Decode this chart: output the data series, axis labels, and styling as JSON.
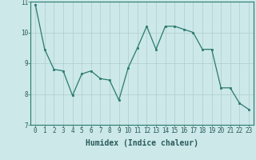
{
  "x": [
    0,
    1,
    2,
    3,
    4,
    5,
    6,
    7,
    8,
    9,
    10,
    11,
    12,
    13,
    14,
    15,
    16,
    17,
    18,
    19,
    20,
    21,
    22,
    23
  ],
  "y": [
    10.9,
    9.45,
    8.8,
    8.75,
    7.95,
    8.65,
    8.75,
    8.5,
    8.45,
    7.8,
    8.85,
    9.5,
    10.2,
    9.45,
    10.2,
    10.2,
    10.1,
    10.0,
    9.45,
    9.45,
    8.2,
    8.2,
    7.7,
    7.5
  ],
  "xlabel": "Humidex (Indice chaleur)",
  "ylim": [
    7,
    11
  ],
  "xlim": [
    -0.5,
    23.5
  ],
  "yticks": [
    7,
    8,
    9,
    10,
    11
  ],
  "xticks": [
    0,
    1,
    2,
    3,
    4,
    5,
    6,
    7,
    8,
    9,
    10,
    11,
    12,
    13,
    14,
    15,
    16,
    17,
    18,
    19,
    20,
    21,
    22,
    23
  ],
  "line_color": "#2a7a6e",
  "marker_color": "#2a7a6e",
  "bg_color": "#cce8e8",
  "grid_color": "#b0cccc",
  "axis_color": "#2a7a6e",
  "text_color": "#2a5a5a",
  "tick_font_size": 5.5,
  "label_font_size": 7.0
}
